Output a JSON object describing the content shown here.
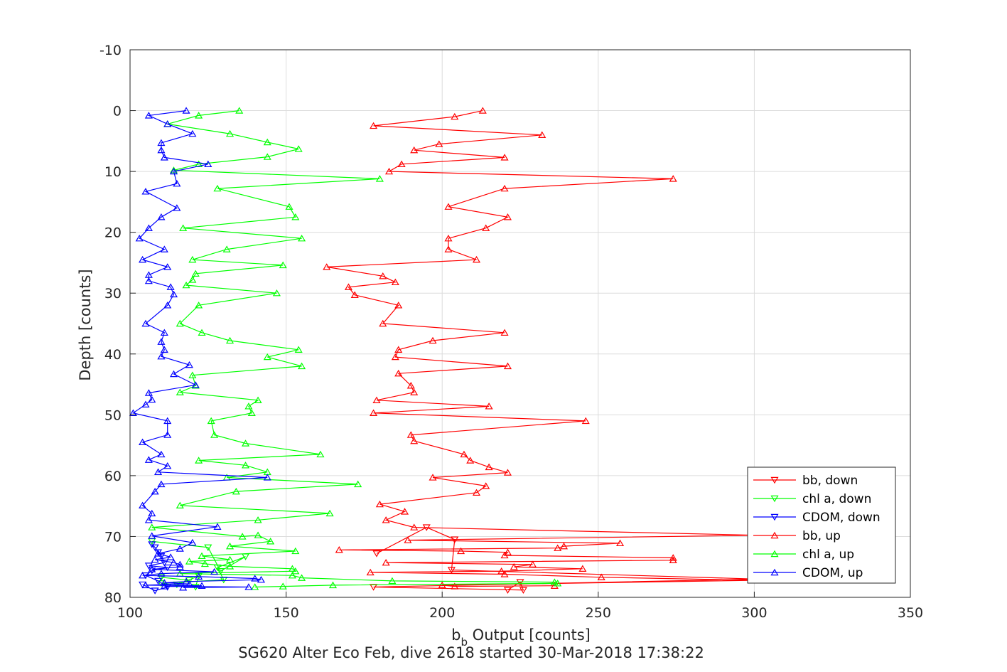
{
  "chart_data": {
    "type": "line",
    "xlabel_main": "b",
    "xlabel_sub": "b",
    "xlabel_rest": " Output [counts]",
    "ylabel": "Depth [counts]",
    "caption": "SG620 Alter Eco Feb, dive 2618 started 30-Mar-2018 17:38:22",
    "xlim": [
      100,
      350
    ],
    "ylim": [
      -10,
      80
    ],
    "y_reversed": true,
    "grid": true,
    "legend_position": "bottom-right",
    "xticks": [
      "100",
      "150",
      "200",
      "250",
      "300",
      "350"
    ],
    "yticks": [
      "-10",
      "0",
      "10",
      "20",
      "30",
      "40",
      "50",
      "60",
      "70",
      "80"
    ],
    "series": [
      {
        "name": "bb, down",
        "color": "#ff0000",
        "marker": "down",
        "x": [
          179,
          195,
          204,
          203,
          301,
          178,
          226,
          225,
          221
        ],
        "y": [
          72.8,
          68.5,
          70.5,
          75.5,
          77.0,
          78.3,
          78.8,
          77.5,
          78.8
        ]
      },
      {
        "name": "chl a, down",
        "color": "#00ff00",
        "marker": "down",
        "x": [
          107,
          125,
          129,
          137,
          128,
          130,
          110,
          121,
          122,
          115,
          119,
          110
        ],
        "y": [
          70.8,
          71.8,
          75.7,
          73.3,
          75.1,
          77.1,
          77.7,
          78.3,
          76.5,
          77.9,
          77.2,
          76.7
        ]
      },
      {
        "name": "CDOM, down",
        "color": "#0000ff",
        "marker": "down",
        "x": [
          107,
          108,
          109,
          110,
          111,
          106,
          112,
          107,
          105,
          109,
          112,
          108,
          104
        ],
        "y": [
          71.3,
          71.8,
          72.6,
          73.2,
          74.3,
          74.8,
          75.1,
          75.6,
          76.4,
          77.3,
          78.3,
          78.9,
          77.9
        ]
      },
      {
        "name": "bb, up",
        "color": "#ff0000",
        "marker": "up",
        "x": [
          213,
          204,
          178,
          232,
          199,
          191,
          220,
          187,
          183,
          274,
          220,
          202,
          221,
          214,
          202,
          202,
          211,
          163,
          181,
          185,
          170,
          172,
          186,
          181,
          220,
          197,
          186,
          185,
          221,
          186,
          190,
          191,
          179,
          215,
          178,
          246,
          190,
          191,
          207,
          209,
          215,
          221,
          197,
          214,
          211,
          180,
          188,
          182,
          191,
          301,
          189,
          257,
          239,
          237,
          167,
          206,
          221,
          220,
          274,
          274,
          182,
          229,
          223,
          245,
          219,
          177,
          220,
          251,
          301,
          200,
          204,
          236
        ],
        "y": [
          0,
          1,
          2.5,
          4,
          5.5,
          6.5,
          7.7,
          8.8,
          10,
          11.2,
          12.8,
          15.8,
          17.5,
          19.3,
          21,
          22.8,
          24.5,
          25.7,
          27.2,
          28.2,
          29,
          30.3,
          32,
          35,
          36.5,
          37.8,
          39.3,
          40.5,
          42,
          43.2,
          45.2,
          46.3,
          47.6,
          48.6,
          49.7,
          51,
          53.3,
          54.3,
          56.5,
          57.5,
          58.6,
          59.5,
          60.3,
          61.7,
          62.8,
          64.7,
          65.9,
          67.3,
          68.5,
          69.8,
          70.6,
          71.1,
          71.6,
          71.9,
          72.2,
          72.4,
          72.6,
          73.1,
          73.5,
          73.9,
          74.3,
          74.6,
          75,
          75.3,
          75.7,
          75.9,
          76.2,
          76.7,
          77.2,
          78,
          78.2,
          78.1
        ]
      },
      {
        "name": "chl a, up",
        "color": "#00ff00",
        "marker": "up",
        "x": [
          135,
          122,
          112,
          132,
          144,
          154,
          144,
          122,
          114,
          180,
          128,
          151,
          153,
          117,
          155,
          131,
          120,
          149,
          121,
          120,
          118,
          147,
          122,
          116,
          123,
          132,
          154,
          144,
          155,
          120,
          121,
          116,
          141,
          138,
          139,
          126,
          127,
          137,
          161,
          122,
          137,
          144,
          131,
          173,
          134,
          116,
          164,
          141,
          107,
          136,
          141,
          145,
          132,
          153,
          123,
          132,
          119,
          124,
          132,
          152,
          153,
          116,
          152,
          155,
          184,
          236,
          237,
          165,
          149,
          140
        ],
        "y": [
          0,
          0.8,
          2.2,
          3.8,
          5.2,
          6.3,
          7.6,
          8.8,
          9.8,
          11.2,
          12.8,
          15.8,
          17.5,
          19.3,
          21,
          22.8,
          24.5,
          25.4,
          26.8,
          27.8,
          28.7,
          30,
          32,
          35,
          36.5,
          37.8,
          39.3,
          40.5,
          42,
          43.5,
          45.2,
          46.3,
          47.6,
          48.6,
          49.7,
          51,
          53.3,
          54.7,
          56.5,
          57.5,
          58.3,
          59.4,
          60.3,
          61.4,
          62.6,
          64.9,
          66.2,
          67.3,
          68.5,
          70,
          69.8,
          70.8,
          71.6,
          72.4,
          73.2,
          73.8,
          74.1,
          74.5,
          74.9,
          75.3,
          75.7,
          76.1,
          76.4,
          76.8,
          77.3,
          77.5,
          77.7,
          78,
          78.2,
          78.3
        ]
      },
      {
        "name": "CDOM, up",
        "color": "#0000ff",
        "marker": "up",
        "x": [
          118,
          106,
          112,
          120,
          110,
          110,
          111,
          125,
          114,
          115,
          105,
          115,
          110,
          106,
          103,
          111,
          104,
          112,
          106,
          106,
          113,
          114,
          112,
          105,
          111,
          110,
          111,
          110,
          119,
          114,
          121,
          106,
          107,
          105,
          101,
          112,
          112,
          104,
          110,
          106,
          112,
          109,
          144,
          110,
          108,
          104,
          107,
          106,
          128,
          107,
          120,
          116,
          109,
          113,
          108,
          114,
          116,
          116,
          107,
          127,
          110,
          104,
          122,
          140,
          142,
          118,
          111,
          119,
          105,
          123,
          111,
          138,
          117
        ],
        "y": [
          0,
          0.8,
          2.2,
          3.8,
          5.3,
          6.5,
          7.7,
          8.8,
          10,
          12,
          13.3,
          16,
          17.5,
          19.3,
          21,
          22.8,
          24.5,
          25.7,
          27,
          28,
          29,
          30.2,
          32,
          35,
          36.5,
          38,
          39.3,
          40.4,
          41.8,
          43.3,
          45.1,
          46.4,
          47.5,
          48.3,
          49.7,
          51,
          53.3,
          54.5,
          56.5,
          57.4,
          58.4,
          59.4,
          60.3,
          61.4,
          62.6,
          64.9,
          66.2,
          67.3,
          68.4,
          69.9,
          71,
          72,
          72.8,
          73.4,
          73.8,
          74.3,
          74.6,
          75,
          75.4,
          75.8,
          76.1,
          76.4,
          76.6,
          76.9,
          77.1,
          77.4,
          77.6,
          77.8,
          78,
          78.1,
          78.2,
          78.3,
          78.4
        ]
      }
    ]
  },
  "legend": {
    "items": [
      {
        "label": "bb, down"
      },
      {
        "label": "chl a, down"
      },
      {
        "label": "CDOM, down"
      },
      {
        "label": "bb, up"
      },
      {
        "label": "chl a, up"
      },
      {
        "label": "CDOM, up"
      }
    ]
  }
}
